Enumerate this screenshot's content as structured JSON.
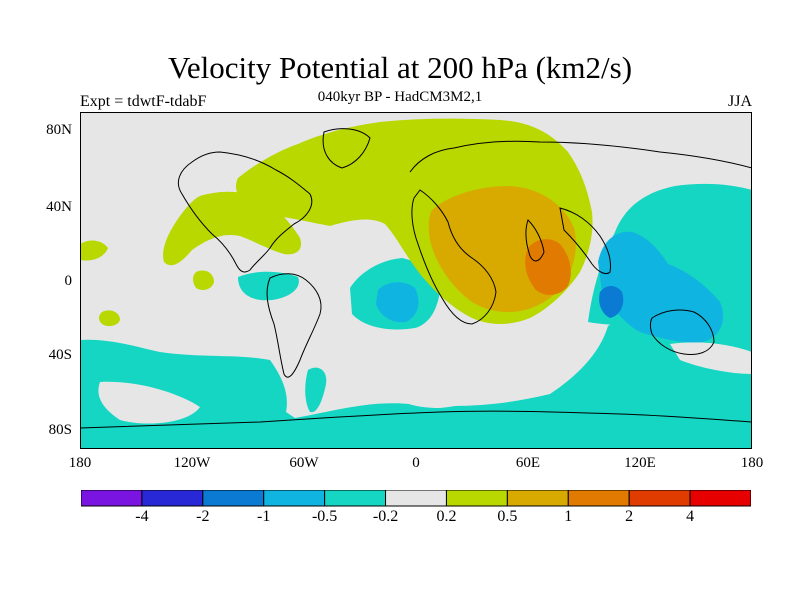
{
  "title": "Velocity Potential at 200 hPa (km2/s)",
  "subtitle": "040kyr BP - HadCM3M2,1",
  "left_label": "Expt = tdwtF-tdabF",
  "right_label": "JJA",
  "lat_labels": [
    "80N",
    "40N",
    "0",
    "40S",
    "80S"
  ],
  "lon_labels": [
    "180",
    "120W",
    "60W",
    "0",
    "60E",
    "120E",
    "180"
  ],
  "colorbar": {
    "labels": [
      "-4",
      "-2",
      "-1",
      "-0.5",
      "-0.2",
      "0.2",
      "0.5",
      "1",
      "2",
      "4"
    ],
    "colors": [
      "#7a14e0",
      "#2828d6",
      "#0a7ad2",
      "#10b4e0",
      "#14d6c2",
      "#e6e6e6",
      "#b8d800",
      "#d8aa00",
      "#e07a00",
      "#e03c00",
      "#e60000"
    ]
  },
  "palette": {
    "neutral": "#e6e6e6",
    "neg1": "#14d6c2",
    "neg2": "#10b4e0",
    "neg3": "#0a7ad2",
    "pos1": "#b8d800",
    "pos2": "#d8aa00",
    "pos3": "#e07a00"
  }
}
